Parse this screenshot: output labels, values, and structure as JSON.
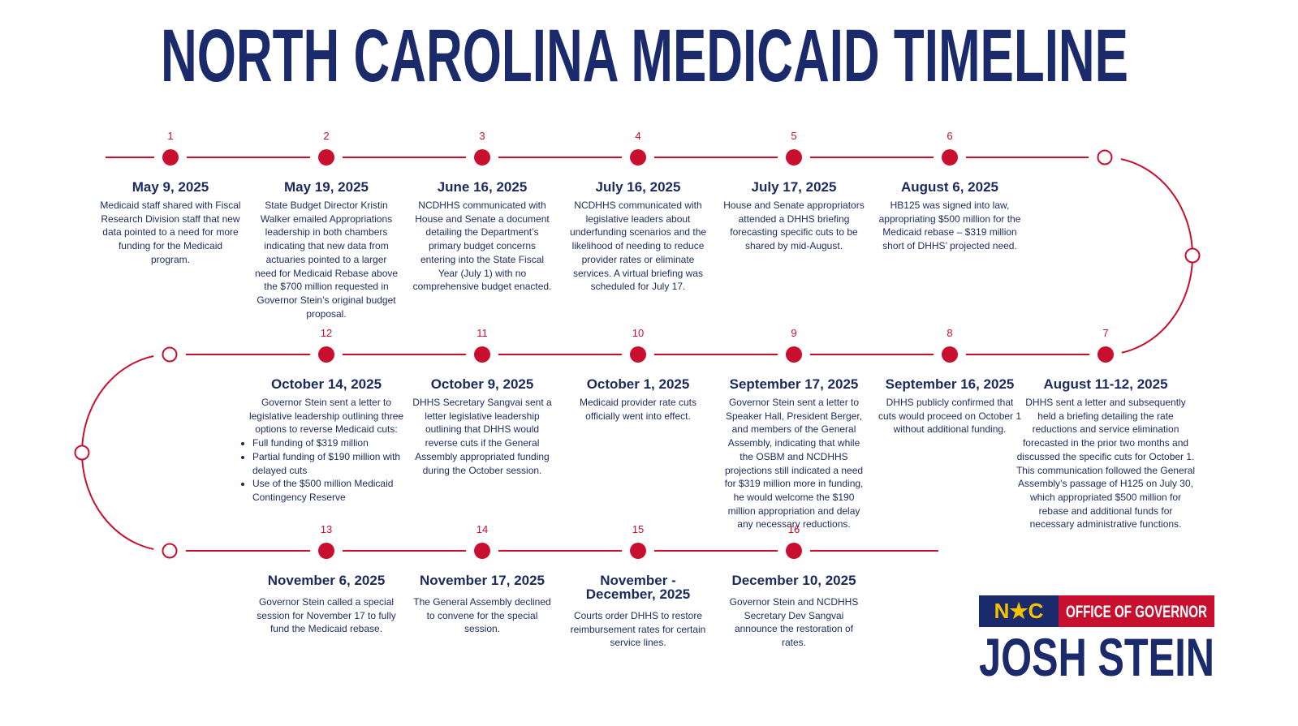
{
  "header": {
    "title": "NORTH CAROLINA MEDICAID TIMELINE"
  },
  "events": [
    {
      "number": 1,
      "date": "May 9, 2025",
      "text": "Medicaid staff shared with Fiscal Research Division staff that new data pointed to a need for more funding for the Medicaid program."
    },
    {
      "number": 2,
      "date": "May 19, 2025",
      "text": "State Budget Director Kristin Walker emailed Appropriations leadership in both chambers indicating that new data from actuaries pointed to a larger need for Medicaid Rebase above the $700 million requested in Governor Stein’s original budget proposal."
    },
    {
      "number": 3,
      "date": "June 16, 2025",
      "text": "NCDHHS communicated with House and Senate a document detailing the Department’s primary budget concerns entering into the State Fiscal Year (July 1) with no comprehensive budget enacted."
    },
    {
      "number": 4,
      "date": "July 16, 2025",
      "text": "NCDHHS communicated with legislative leaders about underfunding scenarios and the likelihood of needing to reduce provider rates or eliminate services. A virtual briefing was scheduled for July 17."
    },
    {
      "number": 5,
      "date": "July 17, 2025",
      "text": "House and Senate appropriators attended a DHHS briefing forecasting specific cuts to be shared by mid-August."
    },
    {
      "number": 6,
      "date": "August 6, 2025",
      "text": "HB125 was signed into law, appropriating $500 million for the Medicaid rebase – $319 million short of DHHS’ projected need."
    },
    {
      "number": 7,
      "date": "August 11-12, 2025",
      "text": "DHHS sent a letter and subsequently held a briefing detailing the rate reductions and service elimination forecasted in the prior two months and discussed the specific cuts for October 1. This communication followed the General Assembly’s passage of H125 on July 30, which appropriated $500 million for rebase and additional funds for necessary administrative functions."
    },
    {
      "number": 8,
      "date": "September 16, 2025",
      "text": "DHHS publicly confirmed that cuts would proceed on October 1 without additional funding."
    },
    {
      "number": 9,
      "date": "September 17, 2025",
      "text": "Governor Stein sent a letter to Speaker Hall, President Berger, and members of the General Assembly, indicating that while the OSBM and NCDHHS projections still indicated a need for $319 million more in funding, he would welcome the $190 million appropriation and delay any necessary reductions."
    },
    {
      "number": 10,
      "date": "October 1, 2025",
      "text": "Medicaid provider rate cuts officially went into effect."
    },
    {
      "number": 11,
      "date": "October 9, 2025",
      "text": "DHHS Secretary Sangvai sent a letter legislative leadership outlining that DHHS would reverse cuts if the General Assembly appropriated funding during the October session."
    },
    {
      "number": 12,
      "date": "October 14, 2025",
      "text": "Governor Stein sent a letter to legislative leadership outlining three options to reverse Medicaid cuts:",
      "bullets": [
        "Full funding of $319 million",
        "Partial funding of $190 million with delayed cuts",
        "Use of the $500 million Medicaid Contingency Reserve"
      ]
    },
    {
      "number": 13,
      "date": "November 6, 2025",
      "text": "Governor Stein called a special session for November 17 to fully fund the Medicaid rebase."
    },
    {
      "number": 14,
      "date": "November 17, 2025",
      "text": "The General Assembly declined to convene for the special session."
    },
    {
      "number": 15,
      "date": "November - December, 2025",
      "text": "Courts order DHHS to restore reimbursement rates for certain service lines."
    },
    {
      "number": 16,
      "date": "December 10, 2025",
      "text": "Governor Stein and NCDHHS Secretary Dev Sangvai announce the restoration of rates."
    }
  ],
  "logo": {
    "mark": "N★C",
    "office": "OFFICE OF GOVERNOR",
    "name": "JOSH STEIN"
  }
}
